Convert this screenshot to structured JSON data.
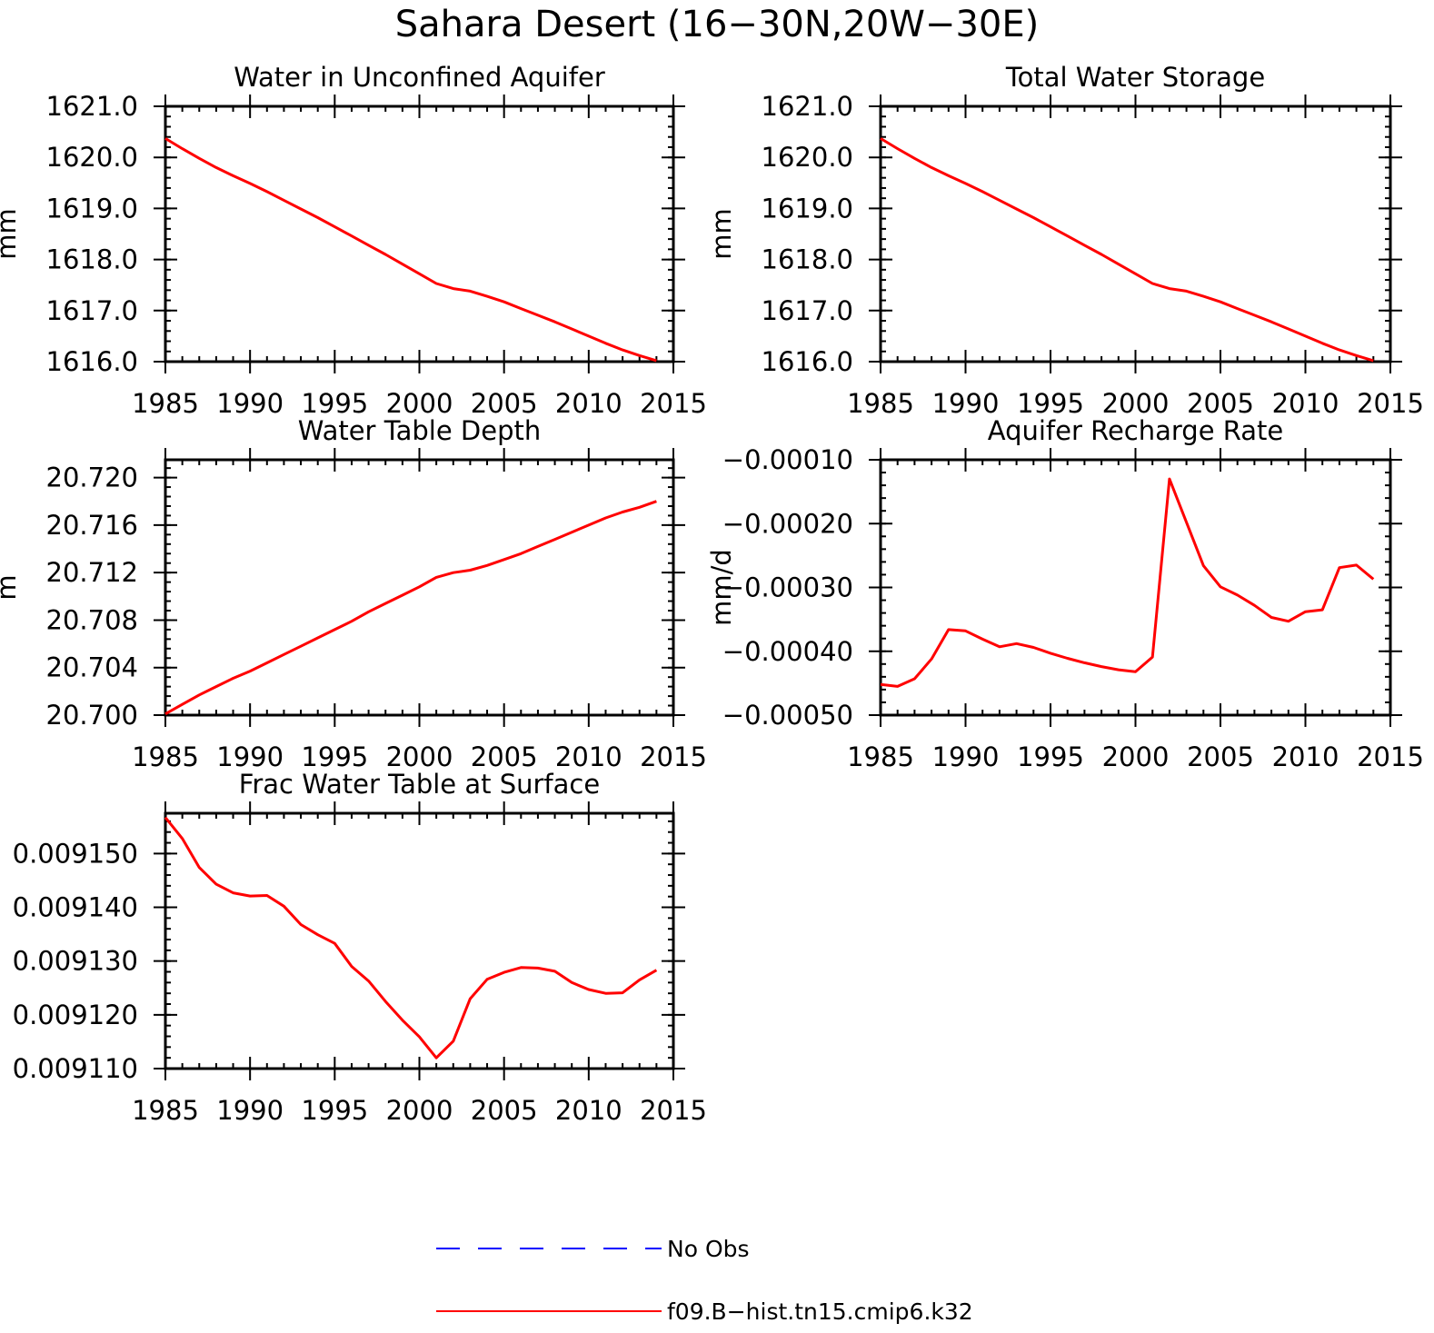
{
  "figure": {
    "title": "Sahara Desert (16−30N,20W−30E)"
  },
  "legend": {
    "entries": [
      {
        "label": "No Obs",
        "color": "#0000ff",
        "dash": true
      },
      {
        "label": "f09.B−hist.tn15.cmip6.k32",
        "color": "#ff0000",
        "dash": false
      }
    ]
  },
  "chart_data": [
    {
      "type": "line",
      "title": "Water in Unconfined Aquifer",
      "ylabel": "mm",
      "xlim": [
        1985,
        2015
      ],
      "ylim": [
        1616.0,
        1621.0
      ],
      "xticks": [
        1985,
        1990,
        1995,
        2000,
        2005,
        2010,
        2015
      ],
      "xtick_labels": [
        "1985",
        "1990",
        "1995",
        "2000",
        "2005",
        "2010",
        "2015"
      ],
      "yticks": [
        1616.0,
        1617.0,
        1618.0,
        1619.0,
        1620.0,
        1621.0
      ],
      "ytick_labels": [
        "1616.0",
        "1617.0",
        "1618.0",
        "1619.0",
        "1620.0",
        "1621.0"
      ],
      "color": "#ff0000",
      "series": [
        {
          "x": [
            1985,
            1986,
            1987,
            1988,
            1989,
            1990,
            1991,
            1992,
            1993,
            1994,
            1995,
            1996,
            1997,
            1998,
            1999,
            2000,
            2001,
            2002,
            2003,
            2004,
            2005,
            2006,
            2007,
            2008,
            2009,
            2010,
            2011,
            2012,
            2013,
            2014
          ],
          "values": [
            1620.37,
            1620.17,
            1619.98,
            1619.8,
            1619.64,
            1619.49,
            1619.33,
            1619.16,
            1618.99,
            1618.82,
            1618.64,
            1618.46,
            1618.28,
            1618.1,
            1617.91,
            1617.72,
            1617.53,
            1617.43,
            1617.38,
            1617.28,
            1617.17,
            1617.04,
            1616.91,
            1616.78,
            1616.64,
            1616.5,
            1616.36,
            1616.23,
            1616.12,
            1616.02
          ]
        }
      ]
    },
    {
      "type": "line",
      "title": "Total Water Storage",
      "ylabel": "mm",
      "xlim": [
        1985,
        2015
      ],
      "ylim": [
        1616.0,
        1621.0
      ],
      "xticks": [
        1985,
        1990,
        1995,
        2000,
        2005,
        2010,
        2015
      ],
      "xtick_labels": [
        "1985",
        "1990",
        "1995",
        "2000",
        "2005",
        "2010",
        "2015"
      ],
      "yticks": [
        1616.0,
        1617.0,
        1618.0,
        1619.0,
        1620.0,
        1621.0
      ],
      "ytick_labels": [
        "1616.0",
        "1617.0",
        "1618.0",
        "1619.0",
        "1620.0",
        "1621.0"
      ],
      "color": "#ff0000",
      "series": [
        {
          "x": [
            1985,
            1986,
            1987,
            1988,
            1989,
            1990,
            1991,
            1992,
            1993,
            1994,
            1995,
            1996,
            1997,
            1998,
            1999,
            2000,
            2001,
            2002,
            2003,
            2004,
            2005,
            2006,
            2007,
            2008,
            2009,
            2010,
            2011,
            2012,
            2013,
            2014
          ],
          "values": [
            1620.37,
            1620.17,
            1619.98,
            1619.8,
            1619.64,
            1619.49,
            1619.33,
            1619.16,
            1618.99,
            1618.82,
            1618.64,
            1618.46,
            1618.28,
            1618.1,
            1617.91,
            1617.72,
            1617.53,
            1617.43,
            1617.38,
            1617.28,
            1617.17,
            1617.04,
            1616.91,
            1616.78,
            1616.64,
            1616.5,
            1616.36,
            1616.23,
            1616.12,
            1616.02
          ]
        }
      ]
    },
    {
      "type": "line",
      "title": "Water Table Depth",
      "ylabel": "m",
      "xlim": [
        1985,
        2015
      ],
      "ylim": [
        20.7,
        20.7215
      ],
      "xticks": [
        1985,
        1990,
        1995,
        2000,
        2005,
        2010,
        2015
      ],
      "xtick_labels": [
        "1985",
        "1990",
        "1995",
        "2000",
        "2005",
        "2010",
        "2015"
      ],
      "yticks": [
        20.7,
        20.704,
        20.708,
        20.712,
        20.716,
        20.72
      ],
      "ytick_labels": [
        "20.700",
        "20.704",
        "20.708",
        "20.712",
        "20.716",
        "20.720"
      ],
      "color": "#ff0000",
      "series": [
        {
          "x": [
            1985,
            1986,
            1987,
            1988,
            1989,
            1990,
            1991,
            1992,
            1993,
            1994,
            1995,
            1996,
            1997,
            1998,
            1999,
            2000,
            2001,
            2002,
            2003,
            2004,
            2005,
            2006,
            2007,
            2008,
            2009,
            2010,
            2011,
            2012,
            2013,
            2014
          ],
          "values": [
            20.7001,
            20.7009,
            20.7017,
            20.7024,
            20.7031,
            20.7037,
            20.7044,
            20.7051,
            20.7058,
            20.7065,
            20.7072,
            20.7079,
            20.7087,
            20.7094,
            20.7101,
            20.7108,
            20.7116,
            20.712,
            20.7122,
            20.7126,
            20.7131,
            20.7136,
            20.7142,
            20.7148,
            20.7154,
            20.716,
            20.7166,
            20.7171,
            20.7175,
            20.718
          ]
        }
      ]
    },
    {
      "type": "line",
      "title": "Aquifer Recharge Rate",
      "ylabel": "mm/d",
      "xlim": [
        1985,
        2015
      ],
      "ylim": [
        -0.0005,
        -0.0001
      ],
      "xticks": [
        1985,
        1990,
        1995,
        2000,
        2005,
        2010,
        2015
      ],
      "xtick_labels": [
        "1985",
        "1990",
        "1995",
        "2000",
        "2005",
        "2010",
        "2015"
      ],
      "yticks": [
        -0.0005,
        -0.0004,
        -0.0003,
        -0.0002,
        -0.0001
      ],
      "ytick_labels": [
        "−0.00050",
        "−0.00040",
        "−0.00030",
        "−0.00020",
        "−0.00010"
      ],
      "color": "#ff0000",
      "series": [
        {
          "x": [
            1985,
            1986,
            1987,
            1988,
            1989,
            1990,
            1991,
            1992,
            1993,
            1994,
            1995,
            1996,
            1997,
            1998,
            1999,
            2000,
            2001,
            2002,
            2003,
            2004,
            2005,
            2006,
            2007,
            2008,
            2009,
            2010,
            2011,
            2012,
            2013,
            2014
          ],
          "values": [
            -0.000452,
            -0.000455,
            -0.000443,
            -0.000412,
            -0.000366,
            -0.000368,
            -0.000381,
            -0.000393,
            -0.000388,
            -0.000394,
            -0.000403,
            -0.000411,
            -0.000418,
            -0.000424,
            -0.000429,
            -0.000432,
            -0.000409,
            -0.00013,
            -0.000198,
            -0.000266,
            -0.000299,
            -0.000312,
            -0.000328,
            -0.000347,
            -0.000353,
            -0.000338,
            -0.000335,
            -0.000269,
            -0.000265,
            -0.000287
          ]
        }
      ]
    },
    {
      "type": "line",
      "title": "Frac Water Table at Surface",
      "ylabel": "",
      "xlim": [
        1985,
        2015
      ],
      "ylim": [
        0.00911,
        0.0091575
      ],
      "xticks": [
        1985,
        1990,
        1995,
        2000,
        2005,
        2010,
        2015
      ],
      "xtick_labels": [
        "1985",
        "1990",
        "1995",
        "2000",
        "2005",
        "2010",
        "2015"
      ],
      "yticks": [
        0.00911,
        0.00912,
        0.00913,
        0.00914,
        0.00915
      ],
      "ytick_labels": [
        "0.009110",
        "0.009120",
        "0.009130",
        "0.009140",
        "0.009150"
      ],
      "color": "#ff0000",
      "series": [
        {
          "x": [
            1985,
            1986,
            1987,
            1988,
            1989,
            1990,
            1991,
            1992,
            1993,
            1994,
            1995,
            1996,
            1997,
            1998,
            1999,
            2000,
            2001,
            2002,
            2003,
            2004,
            2005,
            2006,
            2007,
            2008,
            2009,
            2010,
            2011,
            2012,
            2013,
            2014
          ],
          "values": [
            0.0091567,
            0.0091528,
            0.0091474,
            0.0091443,
            0.0091427,
            0.0091421,
            0.0091422,
            0.0091402,
            0.0091368,
            0.0091349,
            0.0091333,
            0.009129,
            0.0091263,
            0.0091225,
            0.009119,
            0.0091159,
            0.009112,
            0.0091151,
            0.009123,
            0.0091266,
            0.0091279,
            0.0091288,
            0.0091287,
            0.0091281,
            0.009126,
            0.0091247,
            0.009124,
            0.0091241,
            0.0091265,
            0.0091283
          ]
        }
      ]
    }
  ]
}
